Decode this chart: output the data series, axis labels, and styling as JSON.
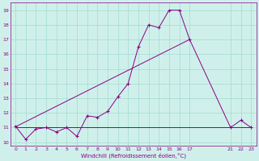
{
  "xlabel": "Windchill (Refroidissement éolien,°C)",
  "background_color": "#cff0ea",
  "grid_color": "#a8ddd5",
  "line_color": "#880088",
  "xlim": [
    -0.5,
    23.5
  ],
  "ylim": [
    9.75,
    19.5
  ],
  "xticks": [
    0,
    1,
    2,
    3,
    4,
    5,
    6,
    7,
    8,
    9,
    10,
    11,
    12,
    13,
    14,
    15,
    16,
    17,
    21,
    22,
    23
  ],
  "yticks": [
    10,
    11,
    12,
    13,
    14,
    15,
    16,
    17,
    18,
    19
  ],
  "wiggly_x": [
    0,
    1,
    2,
    3,
    4,
    5,
    6,
    7,
    8,
    9,
    10,
    11,
    12,
    13,
    14,
    15,
    16,
    17,
    21,
    22,
    23
  ],
  "wiggly_y": [
    11.1,
    10.2,
    10.9,
    11.0,
    10.7,
    11.0,
    10.4,
    11.8,
    11.7,
    12.1,
    13.1,
    14.0,
    16.5,
    18.0,
    17.8,
    19.0,
    19.0,
    17.0,
    11.0,
    11.5,
    11.0
  ],
  "flat_x": [
    0,
    17,
    21,
    22,
    23
  ],
  "flat_y": [
    11.05,
    11.05,
    11.05,
    11.05,
    11.05
  ],
  "trend_x": [
    0,
    17
  ],
  "trend_y": [
    11.05,
    17.0
  ]
}
